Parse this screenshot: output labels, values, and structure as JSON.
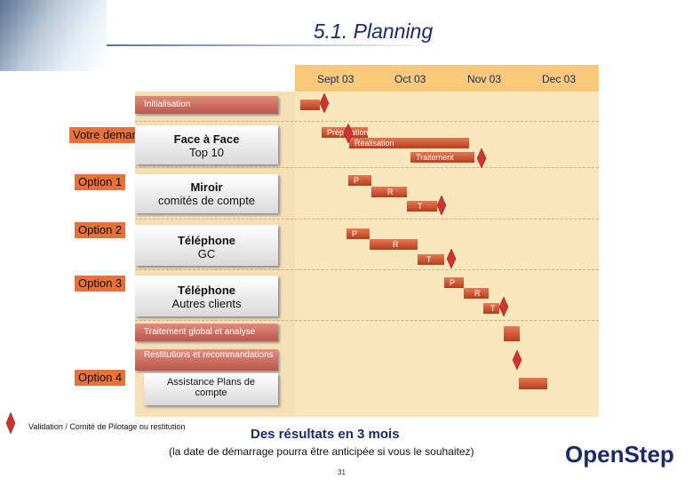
{
  "title": "5.1. Planning",
  "months": [
    "Sept 03",
    "Oct 03",
    "Nov 03",
    "Dec 03"
  ],
  "phases": {
    "initialisation": "Initialisation",
    "traitement_global": "Traitement global et analyse",
    "restitutions": "Restitutions et recommandations"
  },
  "rows": [
    {
      "label": "Votre demande",
      "offer_line1": "Face à Face",
      "offer_line2": "Top 10"
    },
    {
      "label": "Option 1",
      "offer_line1": "Miroir",
      "offer_line2": "comités de compte"
    },
    {
      "label": "Option 2",
      "offer_line1": "Téléphone",
      "offer_line2": "GC"
    },
    {
      "label": "Option 3",
      "offer_line1": "Téléphone",
      "offer_line2": "Autres clients"
    },
    {
      "label": "Option 4",
      "offer_line1": "Assistance Plans de",
      "offer_line2": "compte"
    }
  ],
  "gantt_labels": {
    "preparation": "Préparation",
    "realisation": "Réalisation",
    "traitement": "Traitement",
    "p": "P",
    "r": "R",
    "t": "T"
  },
  "legend": "Validation / Comité de Pilotage ou restitution",
  "result_title": "Des résultats en 3 mois",
  "result_note": "(la date de démarrage pourra être anticipée si vous le souhaitez)",
  "page_number": "31",
  "logo_text": "OpenStep",
  "colors": {
    "accent": "#e8713a",
    "bar": "#c45a3a",
    "diamond": "#d0342c",
    "title": "#1a2a6c"
  }
}
